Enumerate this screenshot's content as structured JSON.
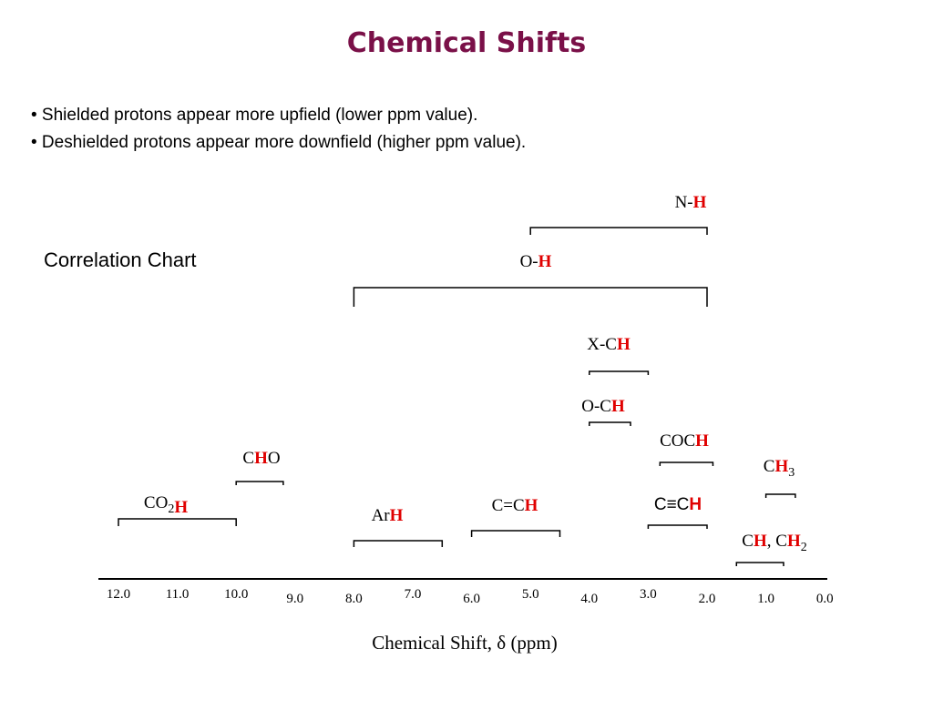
{
  "title": "Chemical Shifts",
  "bullets": [
    "• Shielded protons appear more upfield (lower ppm value).",
    "• Deshielded protons appear more downfield (higher ppm value)."
  ],
  "subtitle": "Correlation Chart",
  "axis": {
    "title": "Chemical Shift, δ (ppm)",
    "ticks": [
      "12.0",
      "11.0",
      "10.0",
      "9.0",
      "8.0",
      "7.0",
      "6.0",
      "5.0",
      "4.0",
      "3.0",
      "2.0",
      "1.0",
      "0.0"
    ]
  },
  "colors": {
    "title": "#7a1048",
    "highlight": "#e00000"
  },
  "ranges": [
    {
      "id": "nh",
      "parts": [
        {
          "t": "N-"
        },
        {
          "t": "H",
          "h": true
        }
      ],
      "from_ppm": 5.0,
      "to_ppm": 2.0
    },
    {
      "id": "oh",
      "parts": [
        {
          "t": "O-"
        },
        {
          "t": "H",
          "h": true
        }
      ],
      "from_ppm": 8.0,
      "to_ppm": 2.0
    },
    {
      "id": "xch",
      "parts": [
        {
          "t": "X-C"
        },
        {
          "t": "H",
          "h": true
        }
      ],
      "from_ppm": 4.0,
      "to_ppm": 3.0
    },
    {
      "id": "och",
      "parts": [
        {
          "t": "O-C"
        },
        {
          "t": "H",
          "h": true
        }
      ],
      "from_ppm": 4.0,
      "to_ppm": 3.3
    },
    {
      "id": "coch",
      "parts": [
        {
          "t": "COC"
        },
        {
          "t": "H",
          "h": true
        }
      ],
      "from_ppm": 2.8,
      "to_ppm": 1.9
    },
    {
      "id": "cho",
      "parts": [
        {
          "t": "C"
        },
        {
          "t": "H",
          "h": true
        },
        {
          "t": "O"
        }
      ],
      "from_ppm": 10.0,
      "to_ppm": 9.2
    },
    {
      "id": "ch3",
      "parts": [
        {
          "t": "C"
        },
        {
          "t": "H",
          "h": true
        },
        {
          "t": "3",
          "sub": true
        }
      ],
      "from_ppm": 1.0,
      "to_ppm": 0.5
    },
    {
      "id": "co2h",
      "parts": [
        {
          "t": "CO"
        },
        {
          "t": "2",
          "sub": true
        },
        {
          "t": "H",
          "h": true
        }
      ],
      "from_ppm": 12.0,
      "to_ppm": 10.0
    },
    {
      "id": "arh",
      "parts": [
        {
          "t": "Ar"
        },
        {
          "t": "H",
          "h": true
        }
      ],
      "from_ppm": 8.0,
      "to_ppm": 6.5
    },
    {
      "id": "cch",
      "parts": [
        {
          "t": "C=C"
        },
        {
          "t": "H",
          "h": true
        }
      ],
      "from_ppm": 6.0,
      "to_ppm": 4.5
    },
    {
      "id": "alkyne",
      "parts": [
        {
          "t": "C≡C"
        },
        {
          "t": "H",
          "h": true
        }
      ],
      "from_ppm": 3.0,
      "to_ppm": 2.0
    },
    {
      "id": "chch2",
      "parts": [
        {
          "t": "C"
        },
        {
          "t": "H",
          "h": true
        },
        {
          "t": ", C"
        },
        {
          "t": "H",
          "h": true
        },
        {
          "t": "2",
          "sub": true
        }
      ],
      "from_ppm": 1.5,
      "to_ppm": 0.7
    }
  ]
}
